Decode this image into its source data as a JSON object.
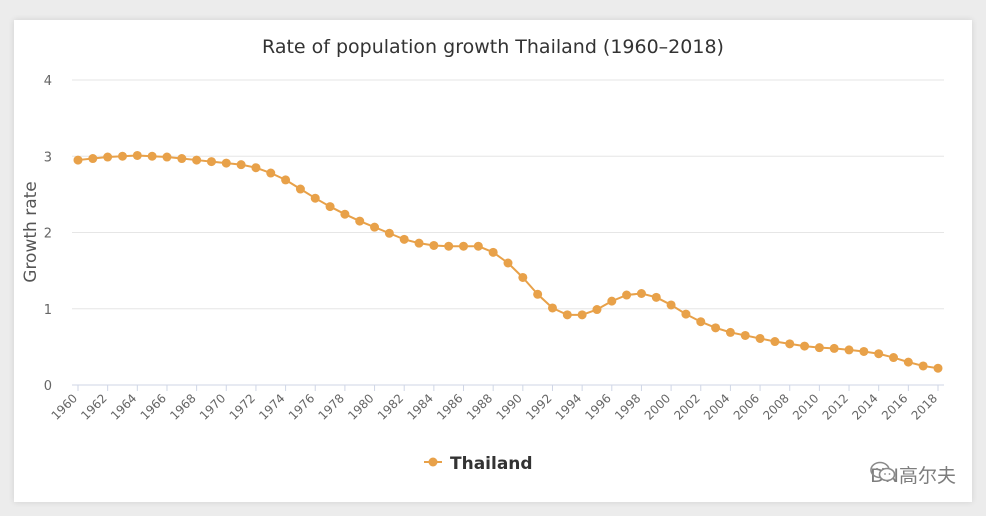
{
  "chart_data": {
    "type": "line",
    "title": "Rate of population growth Thailand (1960–2018)",
    "xlabel": "",
    "ylabel": "Growth rate",
    "ylim": [
      0,
      4
    ],
    "yticks": [
      "0",
      "1",
      "2",
      "3",
      "4"
    ],
    "x": [
      1960,
      1961,
      1962,
      1963,
      1964,
      1965,
      1966,
      1967,
      1968,
      1969,
      1970,
      1971,
      1972,
      1973,
      1974,
      1975,
      1976,
      1977,
      1978,
      1979,
      1980,
      1981,
      1982,
      1983,
      1984,
      1985,
      1986,
      1987,
      1988,
      1989,
      1990,
      1991,
      1992,
      1993,
      1994,
      1995,
      1996,
      1997,
      1998,
      1999,
      2000,
      2001,
      2002,
      2003,
      2004,
      2005,
      2006,
      2007,
      2008,
      2009,
      2010,
      2011,
      2012,
      2013,
      2014,
      2015,
      2016,
      2017,
      2018
    ],
    "xtick_labels": [
      "1960",
      "1962",
      "1964",
      "1966",
      "1968",
      "1970",
      "1972",
      "1974",
      "1976",
      "1978",
      "1980",
      "1982",
      "1984",
      "1986",
      "1988",
      "1990",
      "1992",
      "1994",
      "1996",
      "1998",
      "2000",
      "2002",
      "2004",
      "2006",
      "2008",
      "2010",
      "2012",
      "2014",
      "2016",
      "2018"
    ],
    "series": [
      {
        "name": "Thailand",
        "color": "#e8a149",
        "values": [
          2.95,
          2.97,
          2.99,
          3.0,
          3.01,
          3.0,
          2.99,
          2.97,
          2.95,
          2.93,
          2.91,
          2.89,
          2.85,
          2.78,
          2.69,
          2.57,
          2.45,
          2.34,
          2.24,
          2.15,
          2.07,
          1.99,
          1.91,
          1.86,
          1.83,
          1.82,
          1.82,
          1.82,
          1.74,
          1.6,
          1.41,
          1.19,
          1.01,
          0.92,
          0.92,
          0.99,
          1.1,
          1.18,
          1.2,
          1.15,
          1.05,
          0.93,
          0.83,
          0.75,
          0.69,
          0.65,
          0.61,
          0.57,
          0.54,
          0.51,
          0.49,
          0.48,
          0.46,
          0.44,
          0.41,
          0.36,
          0.3,
          0.25,
          0.22
        ]
      }
    ],
    "legend": "bottom-center",
    "grid": true
  },
  "watermark": {
    "icon": "wechat-icon",
    "text": "DN高尔夫"
  }
}
